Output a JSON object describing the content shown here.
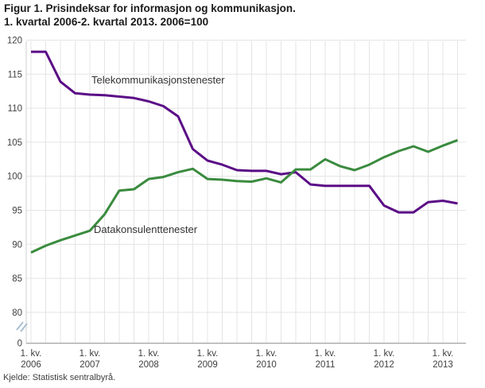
{
  "title": {
    "line1": "Figur 1. Prisindeksar for informasjon og kommunikasjon.",
    "line2": "1. kvartal 2006-2. kvartal 2013. 2006=100"
  },
  "source": "Kjelde: Statistisk sentralbyrå.",
  "chart_data": {
    "type": "line",
    "x_start": "1. kvartal 2006",
    "x_end": "2. kvartal 2013",
    "quarters_per_year": 4,
    "x_ticks": [
      {
        "q": "1. kv.",
        "year": "2006"
      },
      {
        "q": "1. kv.",
        "year": "2007"
      },
      {
        "q": "1. kv.",
        "year": "2008"
      },
      {
        "q": "1. kv.",
        "year": "2009"
      },
      {
        "q": "1. kv.",
        "year": "2010"
      },
      {
        "q": "1. kv.",
        "year": "2011"
      },
      {
        "q": "1. kv.",
        "year": "2012"
      },
      {
        "q": "1. kv.",
        "year": "2013"
      }
    ],
    "y_ticks": [
      120,
      115,
      110,
      105,
      100,
      95,
      90,
      85,
      80
    ],
    "zero_label": "0",
    "axis_break": true,
    "grid": true,
    "ylim_displayed": [
      80,
      120
    ],
    "colors": {
      "grid": "#e4e4e4",
      "axis_left": "#cfcfcf",
      "axis_bottom": "#a9a9a9",
      "break_marker": "#aabfd2"
    },
    "series": [
      {
        "name": "Telekommunikasjonstenester",
        "color": "#5b0c86",
        "values": [
          118.3,
          118.3,
          113.9,
          112.2,
          112.0,
          111.9,
          111.7,
          111.5,
          111.0,
          110.3,
          108.8,
          104.0,
          102.3,
          101.7,
          100.9,
          100.8,
          100.8,
          100.3,
          100.6,
          98.8,
          98.6,
          98.6,
          98.6,
          98.6,
          95.7,
          94.7,
          94.7,
          96.2,
          96.4,
          96.0
        ]
      },
      {
        "name": "Datakonsulenttenester",
        "color": "#3a8b3e",
        "values": [
          88.8,
          89.8,
          90.6,
          91.3,
          92.0,
          94.4,
          97.9,
          98.1,
          99.6,
          99.9,
          100.6,
          101.1,
          99.6,
          99.5,
          99.3,
          99.2,
          99.7,
          99.1,
          101.0,
          101.0,
          102.5,
          101.5,
          100.9,
          101.7,
          102.8,
          103.7,
          104.4,
          103.6,
          104.5,
          105.3
        ]
      }
    ]
  }
}
